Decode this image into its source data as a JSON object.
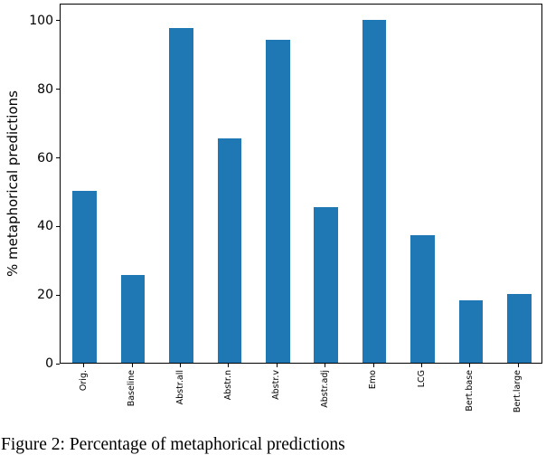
{
  "figure": {
    "caption": "Figure 2: Percentage of metaphorical predictions",
    "background": "#ffffff"
  },
  "chart_data": {
    "type": "bar",
    "title": "",
    "xlabel": "",
    "ylabel": "% metaphorical predictions",
    "categories": [
      "Orig.",
      "Baseline",
      "Abstr.all",
      "Abstr.n",
      "Abstr.v",
      "Abstr.adj",
      "Emo",
      "LCG",
      "Bert.base",
      "Bert.large"
    ],
    "values": [
      50,
      25.7,
      97.7,
      65.5,
      94.3,
      45.5,
      100,
      37.3,
      18.2,
      20
    ],
    "ylim": [
      0,
      105
    ],
    "yticks": [
      0,
      20,
      40,
      60,
      80,
      100
    ],
    "bar_color": "#1f77b4",
    "axis_color": "#000000",
    "grid": false,
    "legend": null,
    "bar_width_fraction": 0.5,
    "x_tick_rotation": 90
  }
}
